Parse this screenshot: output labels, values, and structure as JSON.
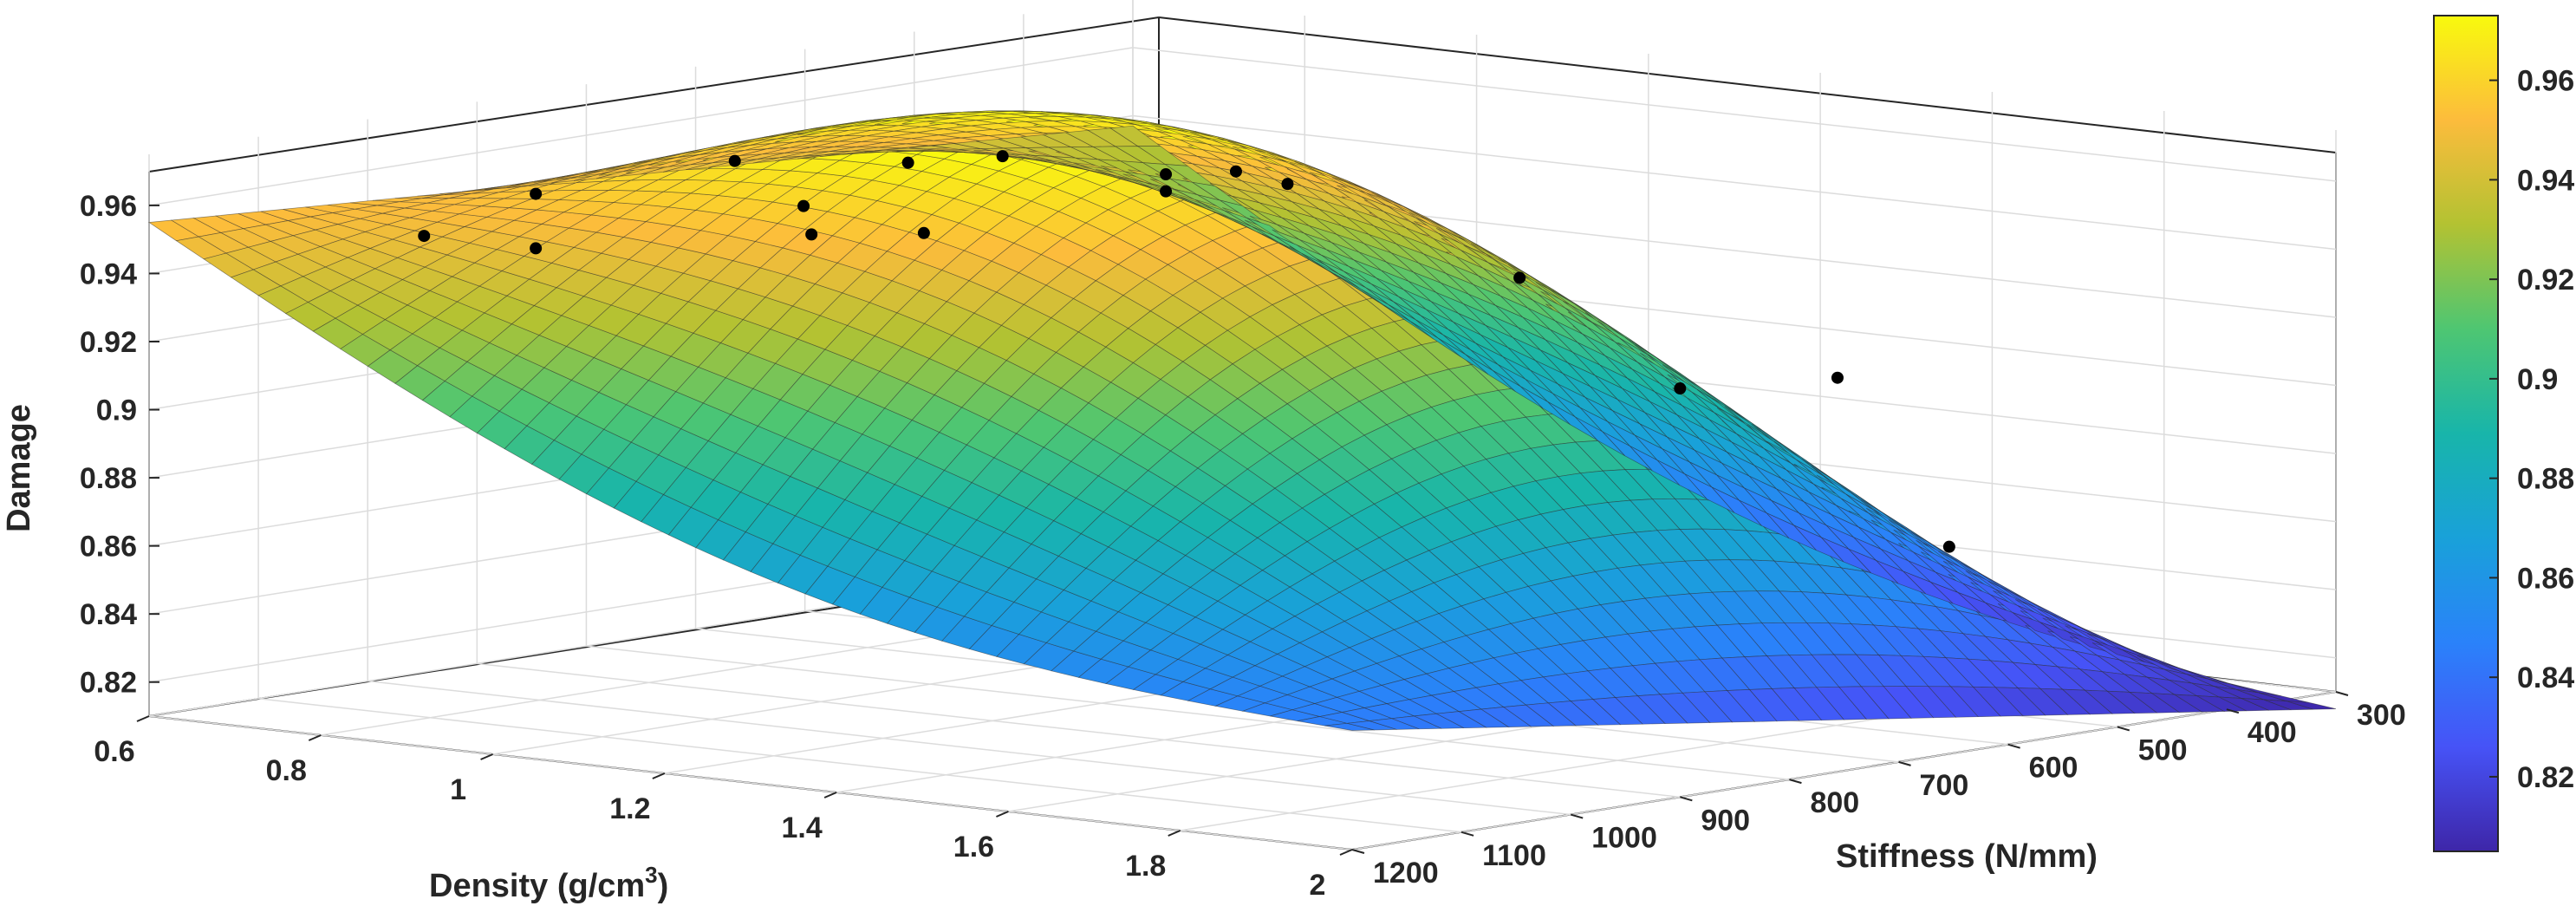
{
  "chart_data": {
    "type": "surface3d",
    "title": "",
    "xlabel": "Density (g/cm",
    "xlabel_superscript": "3",
    "xlabel_close": ")",
    "ylabel": "Stiffness (N/mm)",
    "zlabel": "Damage",
    "xlim": [
      0.6,
      2.0
    ],
    "ylim": [
      300,
      1200
    ],
    "zlim": [
      0.81,
      0.975
    ],
    "x_ticks": [
      "0.6",
      "0.8",
      "1",
      "1.2",
      "1.4",
      "1.6",
      "1.8",
      "2"
    ],
    "y_ticks": [
      "300",
      "400",
      "500",
      "600",
      "700",
      "800",
      "900",
      "1000",
      "1100",
      "1200"
    ],
    "z_ticks": [
      "0.82",
      "0.84",
      "0.86",
      "0.88",
      "0.9",
      "0.92",
      "0.94",
      "0.96"
    ],
    "colorbar_ticks": [
      "0.82",
      "0.84",
      "0.86",
      "0.88",
      "0.9",
      "0.92",
      "0.94",
      "0.96"
    ],
    "colorbar_range": [
      0.805,
      0.973
    ],
    "colormap": "parula",
    "grid": true,
    "surface_corners": {
      "x0.6_y300": 0.937,
      "x2.0_y300": 0.805,
      "x0.6_y1200": 0.955,
      "x2.0_y1200": 0.845
    },
    "points": [
      {
        "x": 0.72,
        "y": 300,
        "z": 0.927
      },
      {
        "x": 0.78,
        "y": 300,
        "z": 0.925
      },
      {
        "x": 1.05,
        "y": 300,
        "z": 0.905
      },
      {
        "x": 1.42,
        "y": 300,
        "z": 0.886
      },
      {
        "x": 1.55,
        "y": 300,
        "z": 0.84
      },
      {
        "x": 0.72,
        "y": 600,
        "z": 0.945
      },
      {
        "x": 0.83,
        "y": 600,
        "z": 0.95
      },
      {
        "x": 1.02,
        "y": 600,
        "z": 0.95
      },
      {
        "x": 1.02,
        "y": 600,
        "z": 0.945
      },
      {
        "x": 0.9,
        "y": 900,
        "z": 0.966
      },
      {
        "x": 0.98,
        "y": 900,
        "z": 0.955
      },
      {
        "x": 1.12,
        "y": 900,
        "z": 0.951
      },
      {
        "x": 1.18,
        "y": 1050,
        "z": 0.96
      },
      {
        "x": 0.92,
        "y": 1200,
        "z": 0.96
      },
      {
        "x": 1.05,
        "y": 1200,
        "z": 0.976
      },
      {
        "x": 1.05,
        "y": 1200,
        "z": 0.96
      },
      {
        "x": 2.0,
        "y": 900,
        "z": 0.93
      }
    ]
  }
}
